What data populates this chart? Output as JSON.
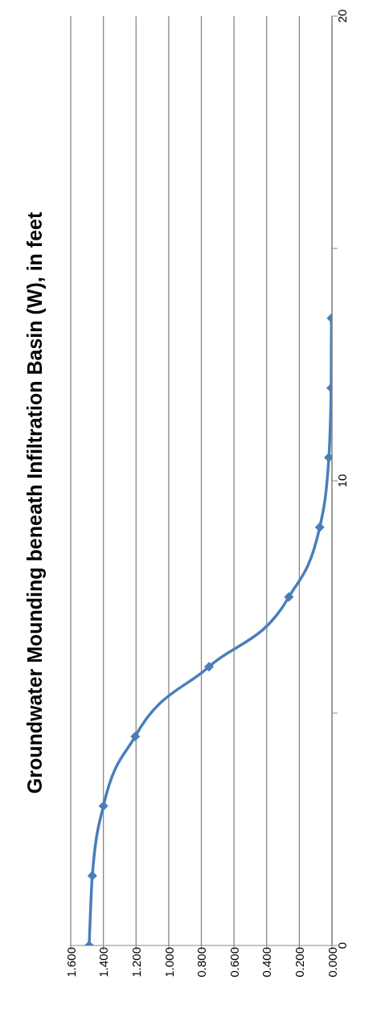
{
  "chart_data": {
    "type": "line",
    "title": "Groundwater Mounding beneath Infiltration Basin (W), in feet",
    "series": [
      {
        "color": "#4a7ebb",
        "x": [
          1.487,
          1.468,
          1.4,
          1.205,
          0.753,
          0.264,
          0.075,
          0.019,
          0.005,
          0.003
        ],
        "values": [
          0,
          1.5,
          3,
          4.5,
          6,
          7.5,
          9,
          10.5,
          12,
          13.5
        ]
      }
    ],
    "xlim": [
      1.6,
      0
    ],
    "xticks": [
      {
        "value": 1.6,
        "label": "1.600"
      },
      {
        "value": 1.4,
        "label": "1.400"
      },
      {
        "value": 1.2,
        "label": "1.200"
      },
      {
        "value": 1,
        "label": "1.000"
      },
      {
        "value": 0.8,
        "label": "0.800"
      },
      {
        "value": 0.6,
        "label": "0.600"
      },
      {
        "value": 0.4,
        "label": "0.400"
      },
      {
        "value": 0.2,
        "label": "0.200"
      },
      {
        "value": 0,
        "label": "0.000"
      }
    ],
    "ylim": [
      0,
      20
    ],
    "yticks": [
      0,
      {
        "value": 5,
        "label": null
      },
      10,
      {
        "value": 15,
        "label": null
      },
      20
    ],
    "grid": "x",
    "marker": "diamond",
    "line_style": "solid"
  }
}
